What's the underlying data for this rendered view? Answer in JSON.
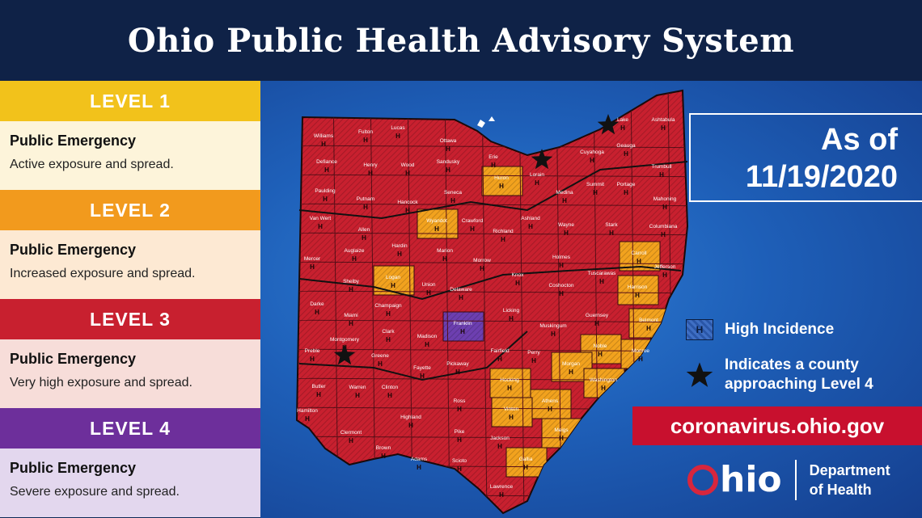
{
  "header": {
    "title": "Ohio Public Health Advisory System"
  },
  "levels": [
    {
      "label": "LEVEL 1",
      "title": "Public Emergency",
      "text": "Active exposure and spread.",
      "band_color": "#f2c21b",
      "desc_bg": "#fdf4da"
    },
    {
      "label": "LEVEL 2",
      "title": "Public Emergency",
      "text": "Increased exposure and spread.",
      "band_color": "#f29a1d",
      "desc_bg": "#fde9d3"
    },
    {
      "label": "LEVEL 3",
      "title": "Public Emergency",
      "text": "Very high exposure and spread.",
      "band_color": "#c8202f",
      "desc_bg": "#f7ddd9"
    },
    {
      "label": "LEVEL 4",
      "title": "Public Emergency",
      "text": "Severe exposure and spread.",
      "band_color": "#6d2f9b",
      "desc_bg": "#e3d7ee"
    }
  ],
  "as_of": {
    "line1": "As of",
    "line2": "11/19/2020"
  },
  "key": {
    "hatch_symbol": "H",
    "high_incidence": "High Incidence",
    "star_line1": "Indicates a county",
    "star_line2": "approaching Level 4"
  },
  "url": "coronavirus.ohio.gov",
  "logo": {
    "wordmark": "hio",
    "dept_line1": "Department",
    "dept_line2": "of Health"
  },
  "map": {
    "colors": {
      "level2": "#f2a21e",
      "level3": "#c8202f",
      "level4": "#6d3fb0"
    },
    "level2_counties": [
      "Huron",
      "Wyandot",
      "Logan",
      "Carroll",
      "Harrison",
      "Belmont",
      "Noble",
      "Monroe",
      "Morgan",
      "Washington",
      "Hocking",
      "Athens",
      "Vinton",
      "Meigs",
      "Gallia"
    ],
    "level4_counties": [
      "Franklin"
    ],
    "starred_counties": [
      "Lake",
      "Lorain",
      "Montgomery"
    ],
    "county_labels": [
      {
        "name": "Williams"
      },
      {
        "name": "Fulton"
      },
      {
        "name": "Lucas"
      },
      {
        "name": "Ottawa"
      },
      {
        "name": "Erie"
      },
      {
        "name": "Lake"
      },
      {
        "name": "Ashtabula"
      },
      {
        "name": "Geauga"
      },
      {
        "name": "Cuyahoga"
      },
      {
        "name": "Defiance"
      },
      {
        "name": "Henry"
      },
      {
        "name": "Wood"
      },
      {
        "name": "Sandusky"
      },
      {
        "name": "Huron"
      },
      {
        "name": "Lorain"
      },
      {
        "name": "Trumbull"
      },
      {
        "name": "Summit"
      },
      {
        "name": "Portage"
      },
      {
        "name": "Medina"
      },
      {
        "name": "Paulding"
      },
      {
        "name": "Putnam"
      },
      {
        "name": "Hancock"
      },
      {
        "name": "Seneca"
      },
      {
        "name": "Mahoning"
      },
      {
        "name": "Van Wert"
      },
      {
        "name": "Wyandot"
      },
      {
        "name": "Crawford"
      },
      {
        "name": "Ashland"
      },
      {
        "name": "Wayne"
      },
      {
        "name": "Stark"
      },
      {
        "name": "Columbiana"
      },
      {
        "name": "Allen"
      },
      {
        "name": "Richland"
      },
      {
        "name": "Hardin"
      },
      {
        "name": "Mercer"
      },
      {
        "name": "Auglaize"
      },
      {
        "name": "Marion"
      },
      {
        "name": "Holmes"
      },
      {
        "name": "Carroll"
      },
      {
        "name": "Morrow"
      },
      {
        "name": "Jefferson"
      },
      {
        "name": "Logan"
      },
      {
        "name": "Tuscarawas"
      },
      {
        "name": "Shelby"
      },
      {
        "name": "Union"
      },
      {
        "name": "Knox"
      },
      {
        "name": "Coshocton"
      },
      {
        "name": "Delaware"
      },
      {
        "name": "Harrison"
      },
      {
        "name": "Darke"
      },
      {
        "name": "Champaign"
      },
      {
        "name": "Miami"
      },
      {
        "name": "Licking"
      },
      {
        "name": "Guernsey"
      },
      {
        "name": "Belmont"
      },
      {
        "name": "Franklin"
      },
      {
        "name": "Clark"
      },
      {
        "name": "Muskingum"
      },
      {
        "name": "Madison"
      },
      {
        "name": "Montgomery"
      },
      {
        "name": "Noble"
      },
      {
        "name": "Monroe"
      },
      {
        "name": "Preble"
      },
      {
        "name": "Greene"
      },
      {
        "name": "Perry"
      },
      {
        "name": "Fairfield"
      },
      {
        "name": "Morgan"
      },
      {
        "name": "Fayette"
      },
      {
        "name": "Pickaway"
      },
      {
        "name": "Washington"
      },
      {
        "name": "Butler"
      },
      {
        "name": "Warren"
      },
      {
        "name": "Clinton"
      },
      {
        "name": "Hocking"
      },
      {
        "name": "Athens"
      },
      {
        "name": "Ross"
      },
      {
        "name": "Highland"
      },
      {
        "name": "Hamilton"
      },
      {
        "name": "Vinton"
      },
      {
        "name": "Clermont"
      },
      {
        "name": "Meigs"
      },
      {
        "name": "Pike"
      },
      {
        "name": "Jackson"
      },
      {
        "name": "Brown"
      },
      {
        "name": "Adams"
      },
      {
        "name": "Scioto"
      },
      {
        "name": "Gallia"
      },
      {
        "name": "Lawrence"
      }
    ]
  }
}
